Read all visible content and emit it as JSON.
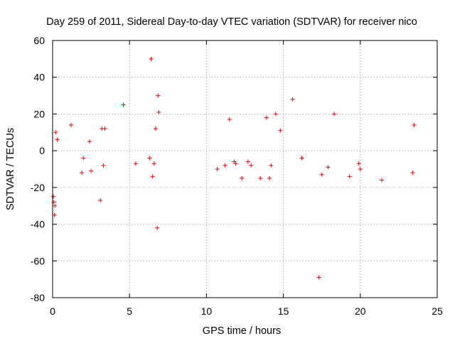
{
  "chart_data": {
    "type": "scatter",
    "title": "Day 259 of 2011, Sidereal Day-to-day VTEC variation (SDTVAR) for receiver nico",
    "xlabel": "GPS time / hours",
    "ylabel": "SDTVAR / TECUs",
    "xlim": [
      0,
      25
    ],
    "ylim": [
      -80,
      60
    ],
    "xticks": [
      0,
      5,
      10,
      15,
      20,
      25
    ],
    "yticks": [
      -80,
      -60,
      -40,
      -20,
      0,
      20,
      40,
      60
    ],
    "xtick_labels": [
      "0",
      "5",
      "10",
      "15",
      "20",
      "25"
    ],
    "ytick_labels": [
      "-80",
      "-60",
      "-40",
      "-20",
      "0",
      "20",
      "40",
      "60"
    ],
    "grid": true,
    "marker": "+",
    "color": "#ff0000",
    "series": [
      {
        "name": "SDTVAR",
        "x": [
          0.05,
          0.08,
          0.12,
          0.15,
          0.2,
          0.3,
          1.2,
          1.9,
          2.0,
          2.4,
          2.5,
          3.1,
          3.2,
          3.3,
          3.4,
          4.6,
          5.4,
          6.3,
          6.4,
          6.5,
          6.6,
          6.7,
          6.8,
          6.85,
          6.9,
          10.7,
          11.2,
          11.5,
          11.8,
          11.9,
          12.3,
          12.7,
          12.9,
          13.5,
          13.9,
          14.1,
          14.2,
          14.5,
          14.8,
          15.6,
          16.2,
          17.3,
          17.5,
          17.9,
          18.3,
          19.3,
          19.9,
          20.0,
          21.4,
          23.4,
          23.5
        ],
        "y": [
          -25,
          -28,
          -35,
          -30,
          10,
          6,
          14,
          -12,
          -4,
          5,
          -11,
          -27,
          12,
          -8,
          12,
          25,
          -7,
          -4,
          50,
          -14,
          -7,
          12,
          -42,
          30,
          21,
          -10,
          -8,
          17,
          -6,
          -7,
          -15,
          -6,
          -8,
          -15,
          18,
          -15,
          -8,
          20,
          11,
          28,
          -4,
          -69,
          -13,
          -9,
          20,
          -14,
          -7,
          -10,
          -16,
          -12,
          14
        ]
      }
    ]
  }
}
